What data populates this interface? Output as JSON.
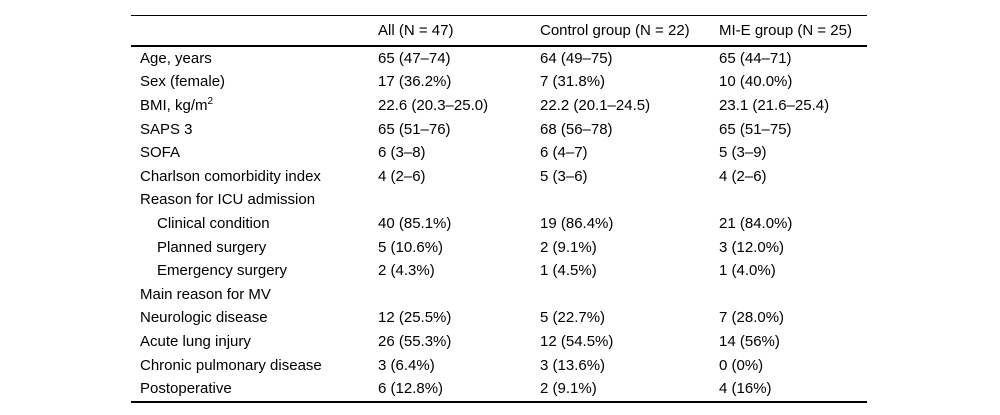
{
  "table": {
    "columns": [
      {
        "label": ""
      },
      {
        "label": "All (N = 47)"
      },
      {
        "label": "Control group (N = 22)"
      },
      {
        "label": "MI-E group (N = 25)"
      }
    ],
    "rows": [
      {
        "label": "Age, years",
        "indent": false,
        "values": [
          "65 (47–74)",
          "64 (49–75)",
          "65 (44–71)"
        ]
      },
      {
        "label": "Sex (female)",
        "indent": false,
        "values": [
          "17 (36.2%)",
          "7 (31.8%)",
          "10 (40.0%)"
        ]
      },
      {
        "label": "BMI, kg/m",
        "label_sup": "2",
        "indent": false,
        "values": [
          "22.6 (20.3–25.0)",
          "22.2 (20.1–24.5)",
          "23.1 (21.6–25.4)"
        ]
      },
      {
        "label": "SAPS 3",
        "indent": false,
        "values": [
          "65 (51–76)",
          "68 (56–78)",
          "65 (51–75)"
        ]
      },
      {
        "label": "SOFA",
        "indent": false,
        "values": [
          "6 (3–8)",
          "6 (4–7)",
          "5 (3–9)"
        ]
      },
      {
        "label": "Charlson comorbidity index",
        "indent": false,
        "values": [
          "4 (2–6)",
          "5 (3–6)",
          "4 (2–6)"
        ]
      },
      {
        "label": "Reason for ICU admission",
        "indent": false,
        "values": [
          "",
          "",
          ""
        ]
      },
      {
        "label": "Clinical condition",
        "indent": true,
        "values": [
          "40 (85.1%)",
          "19 (86.4%)",
          "21 (84.0%)"
        ]
      },
      {
        "label": "Planned surgery",
        "indent": true,
        "values": [
          "5 (10.6%)",
          "2 (9.1%)",
          "3 (12.0%)"
        ]
      },
      {
        "label": "Emergency surgery",
        "indent": true,
        "values": [
          "2 (4.3%)",
          "1 (4.5%)",
          "1 (4.0%)"
        ]
      },
      {
        "label": "Main reason for MV",
        "indent": false,
        "values": [
          "",
          "",
          ""
        ]
      },
      {
        "label": "Neurologic disease",
        "indent": false,
        "values": [
          "12 (25.5%)",
          "5 (22.7%)",
          "7 (28.0%)"
        ]
      },
      {
        "label": "Acute lung injury",
        "indent": false,
        "values": [
          "26 (55.3%)",
          "12 (54.5%)",
          "14 (56%)"
        ]
      },
      {
        "label": "Chronic pulmonary disease",
        "indent": false,
        "values": [
          "3 (6.4%)",
          "3 (13.6%)",
          "0 (0%)"
        ]
      },
      {
        "label": "Postoperative",
        "indent": false,
        "values": [
          "6 (12.8%)",
          "2 (9.1%)",
          "4 (16%)"
        ]
      }
    ]
  }
}
